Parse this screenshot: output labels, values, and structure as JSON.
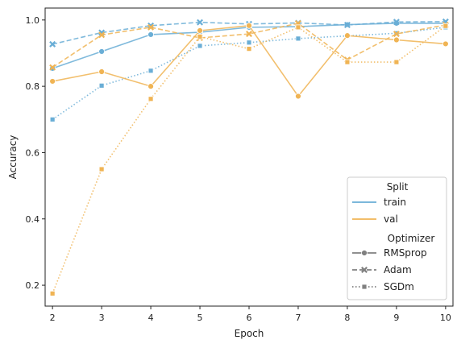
{
  "chart_data": {
    "type": "line",
    "title": "",
    "xlabel": "Epoch",
    "ylabel": "Accuracy",
    "x": [
      2,
      3,
      4,
      5,
      6,
      7,
      8,
      9,
      10
    ],
    "xlim": [
      1.85,
      10.15
    ],
    "ylim": [
      0.137,
      1.036
    ],
    "xticks": [
      "2",
      "3",
      "4",
      "5",
      "6",
      "7",
      "8",
      "9",
      "10"
    ],
    "yticks": [
      "0.2",
      "0.4",
      "0.6",
      "0.8",
      "1.0"
    ],
    "grid": false,
    "legend_position": "bottom-right",
    "legend": {
      "hue_title": "Split",
      "style_title": "Optimizer",
      "hue_entries": [
        {
          "label": "train",
          "color": "#6aaed6"
        },
        {
          "label": "val",
          "color": "#f0b454"
        }
      ],
      "style_entries": [
        {
          "label": "RMSprop",
          "marker": "circle",
          "dash": "solid"
        },
        {
          "label": "Adam",
          "marker": "x",
          "dash": "dashed"
        },
        {
          "label": "SGDm",
          "marker": "square",
          "dash": "dotted"
        }
      ]
    },
    "series": [
      {
        "split": "train",
        "optimizer": "RMSprop",
        "values": [
          0.854,
          0.905,
          0.956,
          0.963,
          0.978,
          0.98,
          0.986,
          0.99,
          0.99
        ]
      },
      {
        "split": "train",
        "optimizer": "Adam",
        "values": [
          0.927,
          0.962,
          0.983,
          0.993,
          0.988,
          0.991,
          0.985,
          0.994,
          0.995
        ]
      },
      {
        "split": "train",
        "optimizer": "SGDm",
        "values": [
          0.7,
          0.802,
          0.847,
          0.922,
          0.932,
          0.944,
          0.952,
          0.96,
          0.978
        ]
      },
      {
        "split": "val",
        "optimizer": "RMSprop",
        "values": [
          0.815,
          0.844,
          0.8,
          0.968,
          0.983,
          0.77,
          0.953,
          0.94,
          0.928
        ]
      },
      {
        "split": "val",
        "optimizer": "Adam",
        "values": [
          0.857,
          0.955,
          0.978,
          0.946,
          0.958,
          0.99,
          0.88,
          0.958,
          0.985
        ]
      },
      {
        "split": "val",
        "optimizer": "SGDm",
        "values": [
          0.175,
          0.55,
          0.762,
          0.95,
          0.913,
          0.978,
          0.873,
          0.873,
          0.982
        ]
      }
    ],
    "colors": {
      "train": "#6aaed6",
      "val": "#f0b454"
    }
  }
}
